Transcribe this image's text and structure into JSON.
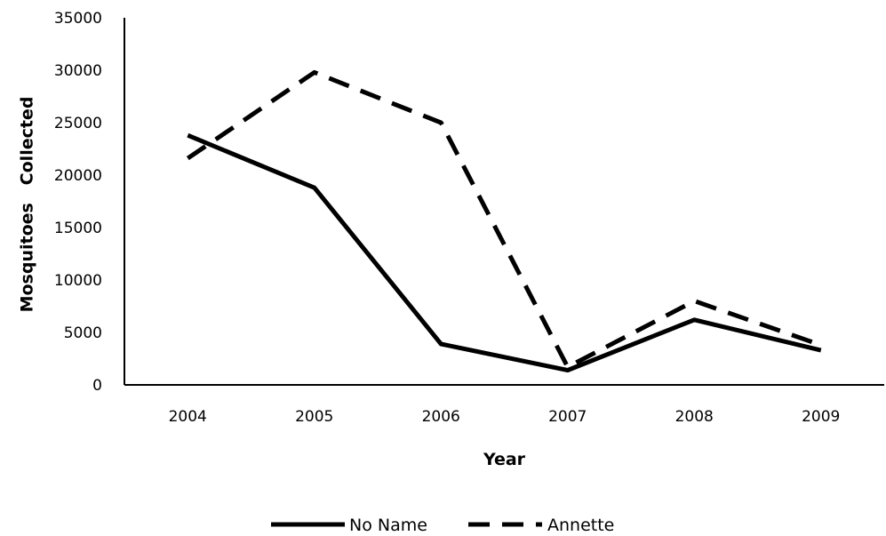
{
  "chart_data": {
    "type": "line",
    "title": "",
    "xlabel": "Year",
    "ylabel": "Mosquitoes   Collected",
    "categories": [
      "2004",
      "2005",
      "2006",
      "2007",
      "2008",
      "2009"
    ],
    "ylim": [
      0,
      35000
    ],
    "yticks": [
      "0",
      "5000",
      "10000",
      "15000",
      "20000",
      "25000",
      "30000",
      "35000"
    ],
    "grid": false,
    "legend_position": "bottom",
    "series": [
      {
        "name": "No Name",
        "values": [
          23800,
          18800,
          3900,
          1400,
          6200,
          3300
        ],
        "color": "#000000",
        "style": "solid"
      },
      {
        "name": "Annette",
        "values": [
          21600,
          29800,
          25000,
          1700,
          8000,
          3800
        ],
        "color": "#000000",
        "style": "dashed"
      }
    ]
  }
}
